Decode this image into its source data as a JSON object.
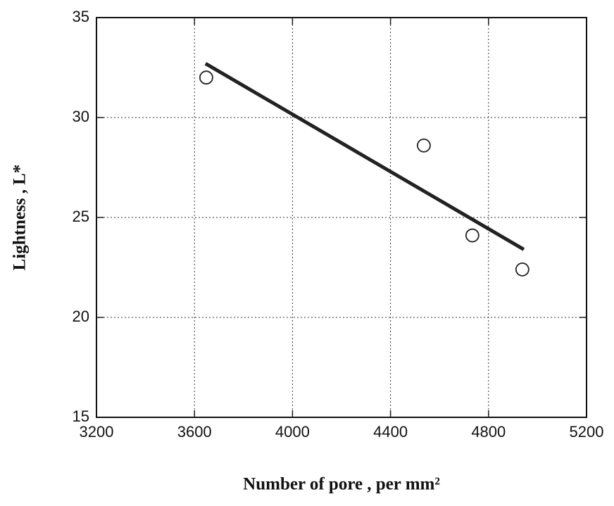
{
  "chart_data": {
    "type": "scatter",
    "x_label": "Number of pore  ,   per mm²",
    "y_label": "Lightness  ,  L*",
    "x": [
      3648,
      4536,
      4734,
      4938
    ],
    "values": [
      32.0,
      28.6,
      24.1,
      22.4
    ],
    "marker_color": "#222222",
    "fit_line": {
      "x": [
        3645,
        4944
      ],
      "values": [
        32.7,
        23.4
      ],
      "color": "#222222"
    },
    "xlim": [
      3200,
      5200
    ],
    "xticks": [
      3200,
      3600,
      4000,
      4400,
      4800,
      5200
    ],
    "ylim": [
      15,
      35
    ],
    "yticks": [
      15,
      20,
      25,
      30,
      35
    ],
    "grid": true
  }
}
